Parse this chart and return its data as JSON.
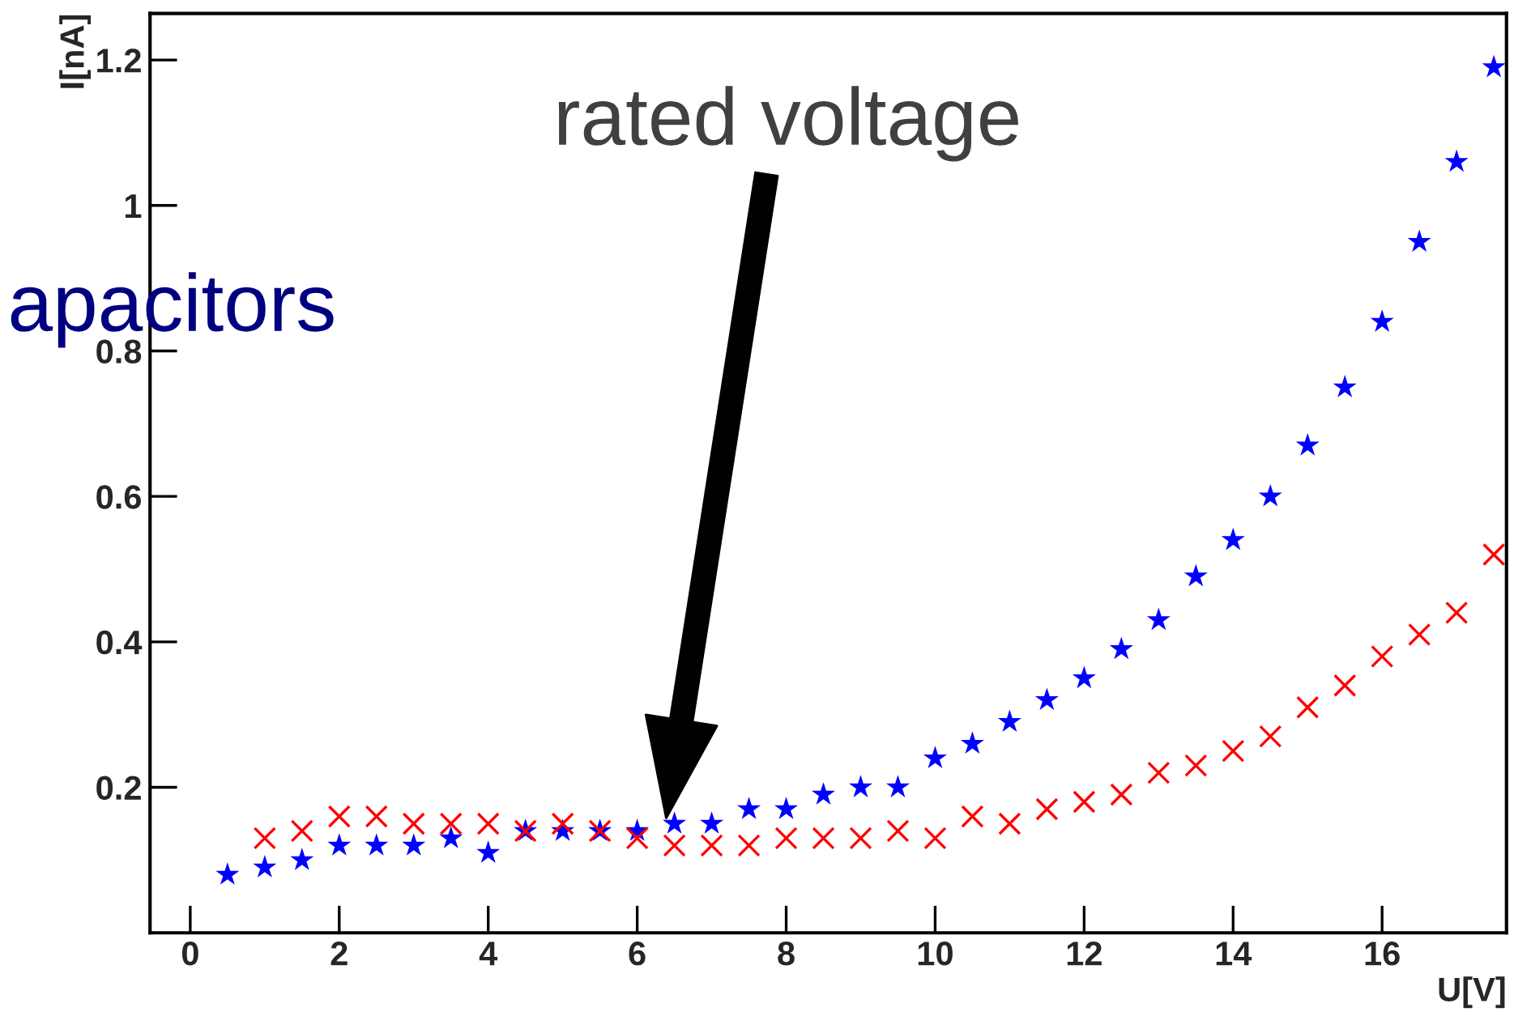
{
  "chart_data": {
    "type": "scatter",
    "xlabel": "U[V]",
    "ylabel": "I[nA]",
    "xlim": [
      -0.54,
      17.67
    ],
    "ylim": [
      0.0,
      1.264
    ],
    "xticks": [
      0,
      2,
      4,
      6,
      8,
      10,
      12,
      14,
      16
    ],
    "yticks": [
      0.2,
      0.4,
      0.6,
      0.8,
      1,
      1.2
    ],
    "grid": false,
    "legend": false,
    "annotations": [
      "rated voltage",
      "apacitors"
    ],
    "series": [
      {
        "color": "#0000ff",
        "marker": "star",
        "x": [
          0.5,
          1,
          1.5,
          2,
          2.5,
          3,
          3.5,
          4,
          4.5,
          5,
          5.5,
          6,
          6.5,
          7,
          7.5,
          8,
          8.5,
          9,
          9.5,
          10,
          10.5,
          11,
          11.5,
          12,
          12.5,
          13,
          13.5,
          14,
          14.5,
          15,
          15.5,
          16,
          16.5,
          17,
          17.5
        ],
        "values": [
          0.08,
          0.09,
          0.1,
          0.12,
          0.12,
          0.12,
          0.13,
          0.11,
          0.14,
          0.14,
          0.14,
          0.14,
          0.15,
          0.15,
          0.17,
          0.17,
          0.19,
          0.2,
          0.2,
          0.24,
          0.26,
          0.29,
          0.32,
          0.35,
          0.39,
          0.43,
          0.49,
          0.54,
          0.6,
          0.67,
          0.75,
          0.84,
          0.95,
          1.06,
          1.19
        ]
      },
      {
        "color": "#ff0000",
        "marker": "cross",
        "x": [
          1,
          1.5,
          2,
          2.5,
          3,
          3.5,
          4,
          4.5,
          5,
          5.5,
          6,
          6.5,
          7,
          7.5,
          8,
          8.5,
          9,
          9.5,
          10,
          10.5,
          11,
          11.5,
          12,
          12.5,
          13,
          13.5,
          14,
          14.5,
          15,
          15.5,
          16,
          16.5,
          17,
          17.5
        ],
        "values": [
          0.13,
          0.14,
          0.16,
          0.16,
          0.15,
          0.15,
          0.15,
          0.14,
          0.15,
          0.14,
          0.13,
          0.12,
          0.12,
          0.12,
          0.13,
          0.13,
          0.13,
          0.14,
          0.13,
          0.16,
          0.15,
          0.17,
          0.18,
          0.19,
          0.22,
          0.23,
          0.25,
          0.27,
          0.31,
          0.34,
          0.38,
          0.41,
          0.44,
          0.52
        ]
      }
    ]
  }
}
